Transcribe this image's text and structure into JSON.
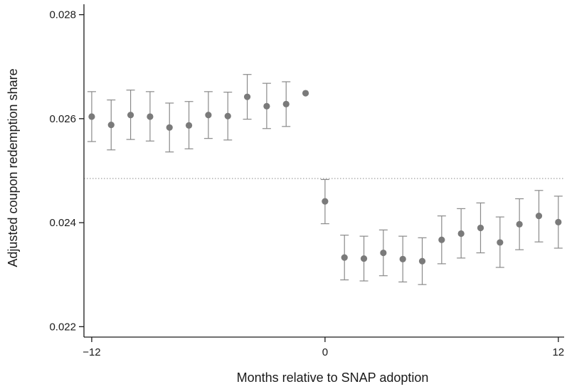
{
  "chart_data": {
    "type": "scatter",
    "xlabel": "Months relative to SNAP adoption",
    "ylabel": "Adjusted coupon redemption share",
    "xlim": [
      -12.4,
      12.3
    ],
    "ylim": [
      0.0218,
      0.0282
    ],
    "x_ticks": [
      -12,
      0,
      12
    ],
    "x_tick_labels": [
      "−12",
      "0",
      "12"
    ],
    "y_ticks": [
      0.022,
      0.024,
      0.026,
      0.028
    ],
    "y_tick_labels": [
      "0.022",
      "0.024",
      "0.026",
      "0.028"
    ],
    "reference_line": {
      "y": 0.02485,
      "style": "dotted"
    },
    "marker_color": "#7a7a7a",
    "errorbar_color": "#8a8a8a",
    "grid": false,
    "points": [
      {
        "x": -12,
        "y": 0.02604,
        "lo": 0.02556,
        "hi": 0.02652
      },
      {
        "x": -11,
        "y": 0.02588,
        "lo": 0.0254,
        "hi": 0.02636
      },
      {
        "x": -10,
        "y": 0.02607,
        "lo": 0.0256,
        "hi": 0.02655
      },
      {
        "x": -9,
        "y": 0.02604,
        "lo": 0.02557,
        "hi": 0.02652
      },
      {
        "x": -8,
        "y": 0.02583,
        "lo": 0.02536,
        "hi": 0.0263
      },
      {
        "x": -7,
        "y": 0.02587,
        "lo": 0.02542,
        "hi": 0.02633
      },
      {
        "x": -6,
        "y": 0.02607,
        "lo": 0.02562,
        "hi": 0.02652
      },
      {
        "x": -5,
        "y": 0.02605,
        "lo": 0.02559,
        "hi": 0.02651
      },
      {
        "x": -4,
        "y": 0.02642,
        "lo": 0.02599,
        "hi": 0.02685
      },
      {
        "x": -3,
        "y": 0.02624,
        "lo": 0.02581,
        "hi": 0.02668
      },
      {
        "x": -2,
        "y": 0.02628,
        "lo": 0.02585,
        "hi": 0.02671
      },
      {
        "x": -1,
        "y": 0.02649
      },
      {
        "x": 0,
        "y": 0.02441,
        "lo": 0.02398,
        "hi": 0.02483
      },
      {
        "x": 1,
        "y": 0.02333,
        "lo": 0.0229,
        "hi": 0.02376
      },
      {
        "x": 2,
        "y": 0.02331,
        "lo": 0.02288,
        "hi": 0.02374
      },
      {
        "x": 3,
        "y": 0.02342,
        "lo": 0.02298,
        "hi": 0.02386
      },
      {
        "x": 4,
        "y": 0.0233,
        "lo": 0.02286,
        "hi": 0.02374
      },
      {
        "x": 5,
        "y": 0.02326,
        "lo": 0.02281,
        "hi": 0.02371
      },
      {
        "x": 6,
        "y": 0.02367,
        "lo": 0.02321,
        "hi": 0.02413
      },
      {
        "x": 7,
        "y": 0.02379,
        "lo": 0.02332,
        "hi": 0.02427
      },
      {
        "x": 8,
        "y": 0.0239,
        "lo": 0.02342,
        "hi": 0.02438
      },
      {
        "x": 9,
        "y": 0.02362,
        "lo": 0.02314,
        "hi": 0.02411
      },
      {
        "x": 10,
        "y": 0.02397,
        "lo": 0.02348,
        "hi": 0.02446
      },
      {
        "x": 11,
        "y": 0.02413,
        "lo": 0.02363,
        "hi": 0.02462
      },
      {
        "x": 12,
        "y": 0.02401,
        "lo": 0.02351,
        "hi": 0.02451
      }
    ]
  }
}
